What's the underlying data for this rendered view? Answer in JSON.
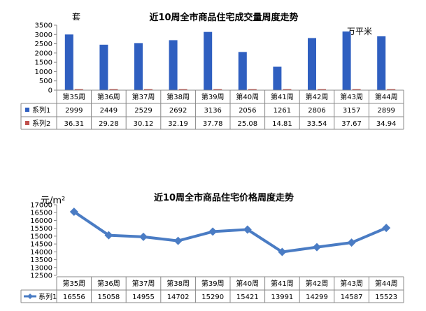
{
  "chart_data": [
    {
      "type": "bar",
      "title": "近10周全市商品住宅成交量周度走势",
      "ylabel": "套",
      "y2label": "万平米",
      "ylim": [
        0,
        3500
      ],
      "yticks": [
        "3500",
        "3000",
        "2500",
        "2000",
        "1500",
        "1000",
        "500",
        "0"
      ],
      "categories": [
        "第35周",
        "第36周",
        "第37周",
        "第38周",
        "第39周",
        "第40周",
        "第41周",
        "第42周",
        "第43周",
        "第44周"
      ],
      "series": [
        {
          "name": "系列1",
          "color": "#2F5FC0",
          "values": [
            2999,
            2449,
            2529,
            2692,
            3136,
            2056,
            1261,
            2806,
            3157,
            2899
          ],
          "labels": [
            "2999",
            "2449",
            "2529",
            "2692",
            "3136",
            "2056",
            "1261",
            "2806",
            "3157",
            "2899"
          ]
        },
        {
          "name": "系列2",
          "color": "#C0504D",
          "values": [
            36.31,
            29.28,
            30.12,
            32.19,
            37.78,
            25.08,
            14.81,
            33.54,
            37.67,
            34.94
          ],
          "labels": [
            "36.31",
            "29.28",
            "30.12",
            "32.19",
            "37.78",
            "25.08",
            "14.81",
            "33.54",
            "37.67",
            "34.94"
          ]
        }
      ],
      "grid": false,
      "legend": "data-table"
    },
    {
      "type": "line",
      "title": "近10周全市商品住宅价格周度走势",
      "ylabel": "元/m²",
      "ylim": [
        12500,
        17000
      ],
      "yticks": [
        "17000",
        "16500",
        "16000",
        "15500",
        "15000",
        "14500",
        "14000",
        "13500",
        "13000",
        "12500"
      ],
      "categories": [
        "第35周",
        "第36周",
        "第37周",
        "第38周",
        "第39周",
        "第40周",
        "第41周",
        "第42周",
        "第43周",
        "第44周"
      ],
      "series": [
        {
          "name": "系列1",
          "color": "#4A7CC4",
          "values": [
            16556,
            15058,
            14955,
            14702,
            15290,
            15421,
            13991,
            14299,
            14587,
            15523
          ],
          "labels": [
            "16556",
            "15058",
            "14955",
            "14702",
            "15290",
            "15421",
            "13991",
            "14299",
            "14587",
            "15523"
          ]
        }
      ],
      "grid": false,
      "legend": "data-table"
    }
  ]
}
